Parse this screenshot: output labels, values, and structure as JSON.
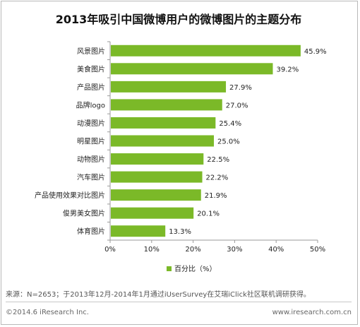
{
  "colors": {
    "bar": "#7bb928",
    "axis": "#9a9a9a",
    "text": "#222222"
  },
  "chart_data": {
    "type": "bar",
    "orientation": "horizontal",
    "title": "2013年吸引中国微博用户的微博图片的主题分布",
    "categories": [
      "风景图片",
      "美食图片",
      "产品图片",
      "品牌logo",
      "动漫图片",
      "明星图片",
      "动物图片",
      "汽车图片",
      "产品使用效果对比图片",
      "俊男美女图片",
      "体育图片"
    ],
    "series": [
      {
        "name": "百分比（%）",
        "values": [
          45.9,
          39.2,
          27.9,
          27.0,
          25.4,
          25.0,
          22.5,
          22.2,
          21.9,
          20.1,
          13.3
        ]
      }
    ],
    "data_labels": [
      "45.9%",
      "39.2%",
      "27.9%",
      "27.0%",
      "25.4%",
      "25.0%",
      "22.5%",
      "22.2%",
      "21.9%",
      "20.1%",
      "13.3%"
    ],
    "xlim": [
      0,
      50
    ],
    "x_ticks": [
      "0%",
      "10%",
      "20%",
      "30%",
      "40%",
      "50%"
    ],
    "grid": false,
    "legend_position": "bottom"
  },
  "footer": {
    "source": "来源：N=2653；于2013年12月-2014年1月通过iUserSurvey在艾瑞iClick社区联机调研获得。",
    "copyright": "©2014.6 iResearch Inc.",
    "website": "www.iresearch.com.cn"
  }
}
